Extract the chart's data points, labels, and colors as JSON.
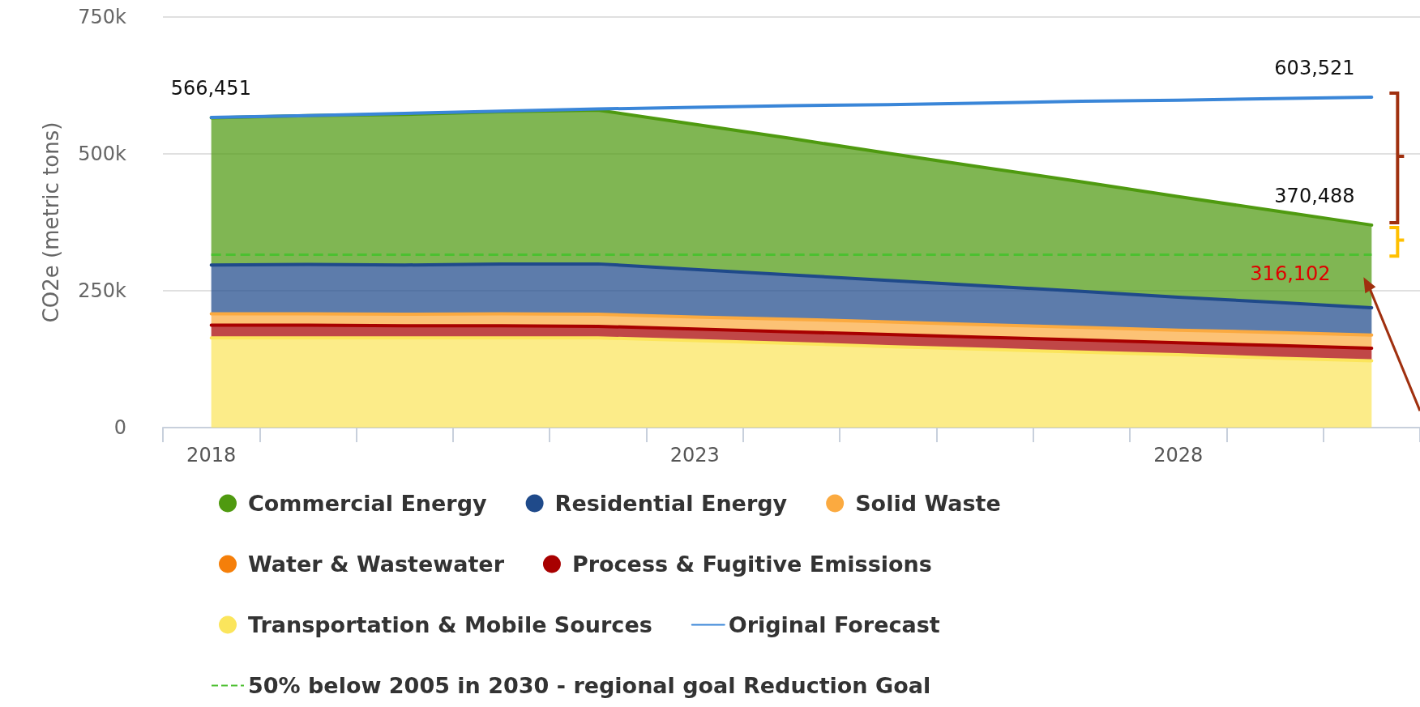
{
  "chart_data": {
    "type": "area",
    "stacked": true,
    "ylabel": "CO2e (metric tons)",
    "categories": [
      "2018",
      null,
      null,
      null,
      null,
      "2023",
      null,
      null,
      null,
      null,
      "2028",
      null,
      null
    ],
    "ylim": [
      0,
      750000
    ],
    "yticks": [
      0,
      {
        "value": 250000,
        "label": "250k"
      },
      {
        "value": 500000,
        "label": "500k"
      },
      {
        "value": 750000,
        "label": "750k"
      }
    ],
    "grid": "y",
    "legend": "bottom",
    "marker": "none",
    "series": [
      {
        "name": "Transportation & Mobile Sources",
        "color": "#fbe55c",
        "values": [
          164000,
          164000,
          164000,
          164000,
          164000,
          159000,
          154000,
          148000,
          143000,
          138000,
          133000,
          127000,
          122000
        ]
      },
      {
        "name": "Process & Fugitive Emissions",
        "color": "#a80000",
        "values": [
          23000,
          23000,
          22000,
          22000,
          21000,
          21000,
          21000,
          22000,
          22000,
          22000,
          22000,
          23000,
          23000
        ]
      },
      {
        "name": "Water & Wastewater",
        "color": "#f57f0a",
        "values": [
          null,
          null,
          null,
          null,
          null,
          null,
          null,
          null,
          null,
          null,
          null,
          null,
          null
        ]
      },
      {
        "name": "Solid Waste",
        "color": "#fbaa40",
        "values": [
          21000,
          21000,
          21000,
          22000,
          22000,
          22000,
          23000,
          23000,
          23000,
          23000,
          23000,
          24000,
          24000
        ]
      },
      {
        "name": "Residential Energy",
        "color": "#1f4a8a",
        "values": [
          89000,
          90000,
          90000,
          91000,
          92000,
          87000,
          81000,
          76000,
          71000,
          66000,
          60000,
          55000,
          50000
        ]
      },
      {
        "name": "Commercial Energy",
        "color": "#4f9a10",
        "values": [
          269000,
          272000,
          275000,
          278000,
          281000,
          265000,
          249000,
          232000,
          216000,
          200000,
          184000,
          167000,
          151000
        ]
      },
      {
        "name": "Original Forecast",
        "type": "line",
        "color": "#3a86d8",
        "values": [
          566451,
          570000,
          574000,
          578000,
          582000,
          585000,
          588000,
          590000,
          593000,
          596000,
          598000,
          601000,
          603521
        ]
      }
    ],
    "ref_lines": [
      {
        "axis": "y",
        "value": 316102,
        "label": "50% below 2005 in 2030 - regional goal Reduction Goal",
        "color": "#4cc030",
        "line_style": "dashed"
      }
    ],
    "annotations": [
      {
        "text": "566,451",
        "x": "2018",
        "y": 566451
      },
      {
        "text": "603,521",
        "y": 603521
      },
      "370,488",
      "316,102"
    ]
  }
}
